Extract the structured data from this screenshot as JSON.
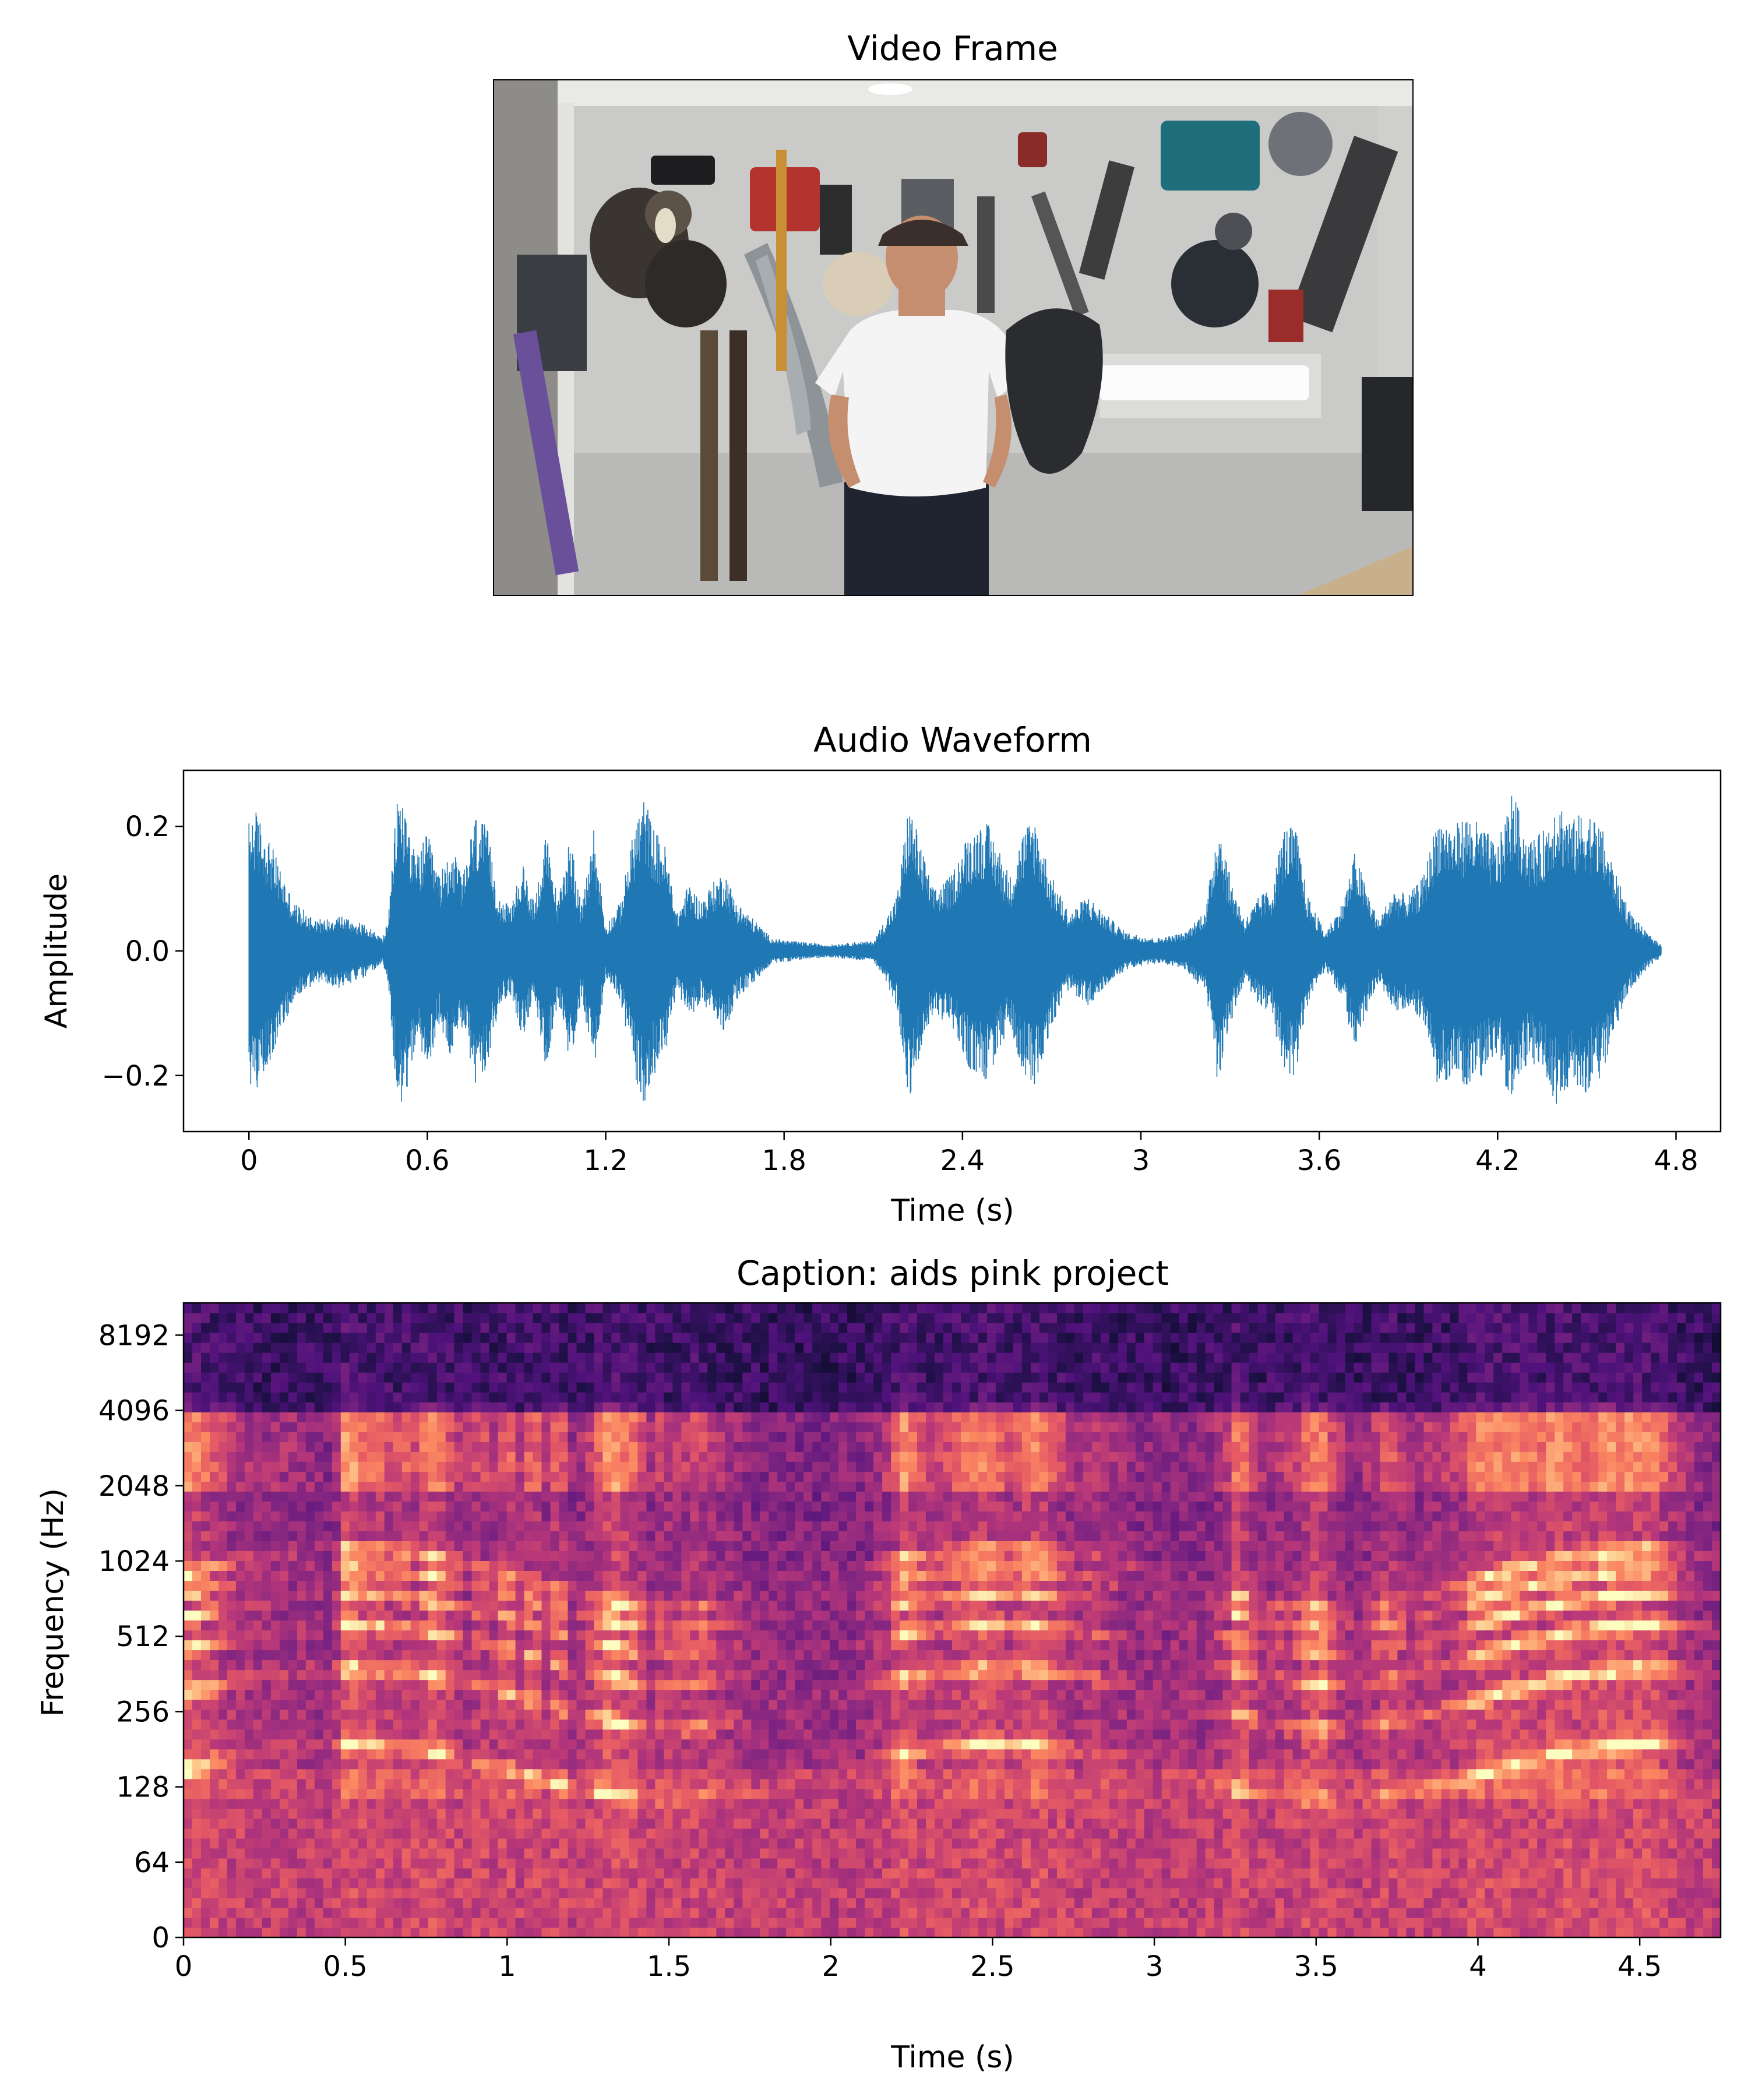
{
  "video_panel": {
    "title": "Video Frame",
    "scene": {
      "wall_color": "#cfcfcc",
      "ceiling_color": "#e9e9e6",
      "shirt_color": "#f4f4f4",
      "pants_color": "#1f2430",
      "skin_color": "#c58e6e",
      "cap_color": "#3a2f2a",
      "light_color": "#fbfbfb"
    }
  },
  "chart_data": [
    {
      "type": "line",
      "title": "Audio Waveform",
      "xlabel": "Time (s)",
      "ylabel": "Amplitude",
      "xlim": [
        -0.22,
        4.95
      ],
      "ylim": [
        -0.29,
        0.29
      ],
      "x_ticks": [
        0,
        0.6,
        1.2,
        1.8,
        2.4,
        3,
        3.6,
        4.2,
        4.8
      ],
      "x_tick_labels": [
        "0",
        "0.6",
        "1.2",
        "1.8",
        "2.4",
        "3",
        "3.6",
        "4.2",
        "4.8"
      ],
      "y_ticks": [
        -0.2,
        0.0,
        0.2
      ],
      "y_tick_labels": [
        "−0.2",
        "0.0",
        "0.2"
      ],
      "color": "#1f77b4",
      "duration": 4.75,
      "series": [
        {
          "envelope_time": [
            0.0,
            0.02,
            0.06,
            0.1,
            0.15,
            0.2,
            0.25,
            0.3,
            0.35,
            0.4,
            0.45,
            0.47,
            0.5,
            0.53,
            0.56,
            0.6,
            0.64,
            0.68,
            0.72,
            0.76,
            0.8,
            0.84,
            0.88,
            0.92,
            0.96,
            1.0,
            1.04,
            1.08,
            1.12,
            1.16,
            1.2,
            1.25,
            1.3,
            1.33,
            1.36,
            1.4,
            1.44,
            1.48,
            1.52,
            1.56,
            1.6,
            1.64,
            1.7,
            1.76,
            1.85,
            1.95,
            2.05,
            2.1,
            2.15,
            2.18,
            2.22,
            2.26,
            2.3,
            2.36,
            2.42,
            2.48,
            2.52,
            2.56,
            2.6,
            2.64,
            2.7,
            2.76,
            2.82,
            2.88,
            2.95,
            3.05,
            3.15,
            3.22,
            3.26,
            3.3,
            3.35,
            3.4,
            3.44,
            3.48,
            3.52,
            3.56,
            3.62,
            3.68,
            3.72,
            3.76,
            3.8,
            3.85,
            3.9,
            3.95,
            4.0,
            4.05,
            4.1,
            4.15,
            4.2,
            4.25,
            4.3,
            4.35,
            4.4,
            4.45,
            4.5,
            4.55,
            4.6,
            4.65,
            4.7,
            4.75
          ],
          "envelope_amplitude": [
            0.21,
            0.23,
            0.19,
            0.14,
            0.08,
            0.06,
            0.05,
            0.06,
            0.05,
            0.04,
            0.02,
            0.06,
            0.26,
            0.23,
            0.15,
            0.19,
            0.12,
            0.17,
            0.12,
            0.22,
            0.2,
            0.09,
            0.07,
            0.14,
            0.08,
            0.19,
            0.08,
            0.19,
            0.07,
            0.2,
            0.04,
            0.08,
            0.21,
            0.25,
            0.2,
            0.17,
            0.06,
            0.11,
            0.08,
            0.11,
            0.13,
            0.08,
            0.05,
            0.02,
            0.015,
            0.01,
            0.015,
            0.015,
            0.06,
            0.09,
            0.24,
            0.17,
            0.1,
            0.12,
            0.19,
            0.21,
            0.17,
            0.12,
            0.19,
            0.22,
            0.12,
            0.06,
            0.09,
            0.06,
            0.03,
            0.02,
            0.03,
            0.07,
            0.22,
            0.12,
            0.05,
            0.09,
            0.1,
            0.2,
            0.2,
            0.09,
            0.03,
            0.08,
            0.16,
            0.1,
            0.05,
            0.1,
            0.09,
            0.12,
            0.22,
            0.2,
            0.22,
            0.2,
            0.17,
            0.26,
            0.18,
            0.19,
            0.25,
            0.21,
            0.23,
            0.2,
            0.12,
            0.06,
            0.03,
            0.01
          ]
        }
      ]
    },
    {
      "type": "heatmap",
      "title": "Caption: aids pink project",
      "xlabel": "Time (s)",
      "ylabel": "Frequency (Hz)",
      "xlim": [
        0,
        4.75
      ],
      "x_ticks": [
        0,
        0.5,
        1,
        1.5,
        2,
        2.5,
        3,
        3.5,
        4,
        4.5
      ],
      "x_tick_labels": [
        "0",
        "0.5",
        "1",
        "1.5",
        "2",
        "2.5",
        "3",
        "3.5",
        "4",
        "4.5"
      ],
      "y_scale": "symlog",
      "y_max_hz": 11025,
      "y_ticks": [
        0,
        64,
        128,
        256,
        512,
        1024,
        2048,
        4096,
        8192
      ],
      "y_tick_labels": [
        "0",
        "64",
        "128",
        "256",
        "512",
        "1024",
        "2048",
        "4096",
        "8192"
      ],
      "colormap": "magma",
      "colormap_stops": [
        "#000004",
        "#1c1044",
        "#4f127b",
        "#812581",
        "#b5367a",
        "#e55964",
        "#fb8761",
        "#fec287",
        "#fcfdbf"
      ]
    }
  ]
}
